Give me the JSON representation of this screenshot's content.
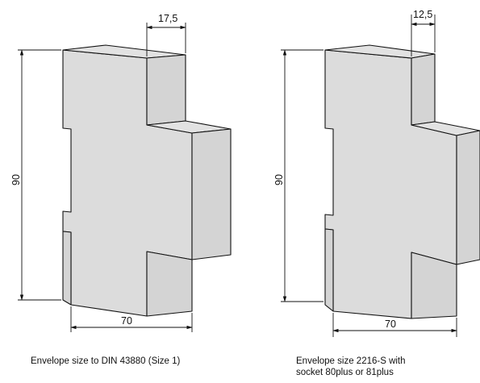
{
  "left_drawing": {
    "dim_width_top": "17,5",
    "dim_height": "90",
    "dim_width_bottom": "70",
    "caption": "Envelope size to DIN 43880 (Size 1)"
  },
  "right_drawing": {
    "dim_width_top": "12,5",
    "dim_height": "90",
    "dim_width_bottom": "70",
    "caption_line1": "Envelope size 2216-S with",
    "caption_line2": "socket 80plus or 81plus"
  }
}
